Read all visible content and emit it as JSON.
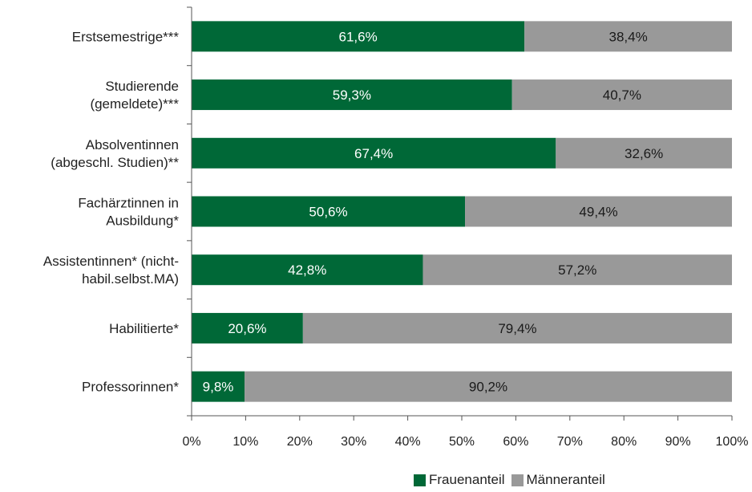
{
  "chart_data": {
    "type": "bar",
    "orientation": "horizontal",
    "stacked": true,
    "categories": [
      [
        "Erstsemestrige***"
      ],
      [
        "Studierende",
        "(gemeldete)***"
      ],
      [
        "Absolventinnen",
        "(abgeschl. Studien)**"
      ],
      [
        "Fachärztinnen in",
        "Ausbildung*"
      ],
      [
        "Assistentinnen* (nicht-",
        "habil.selbst.MA)"
      ],
      [
        "Habilitierte*"
      ],
      [
        "Professorinnen*"
      ]
    ],
    "series": [
      {
        "name": "Frauenanteil",
        "color": "#006837",
        "label_color": "#ffffff",
        "values": [
          61.6,
          59.3,
          67.4,
          50.6,
          42.8,
          20.6,
          9.8
        ],
        "labels": [
          "61,6%",
          "59,3%",
          "67,4%",
          "50,6%",
          "42,8%",
          "20,6%",
          "9,8%"
        ]
      },
      {
        "name": "Männeranteil",
        "color": "#999999",
        "label_color": "#1a1a1a",
        "values": [
          38.4,
          40.7,
          32.6,
          49.4,
          57.2,
          79.4,
          90.2
        ],
        "labels": [
          "38,4%",
          "40,7%",
          "32,6%",
          "49,4%",
          "57,2%",
          "79,4%",
          "90,2%"
        ]
      }
    ],
    "xlim": [
      0,
      100
    ],
    "xticks": [
      "0%",
      "10%",
      "20%",
      "30%",
      "40%",
      "50%",
      "60%",
      "70%",
      "80%",
      "90%",
      "100%"
    ],
    "grid": false,
    "legend_position": "bottom-right"
  }
}
